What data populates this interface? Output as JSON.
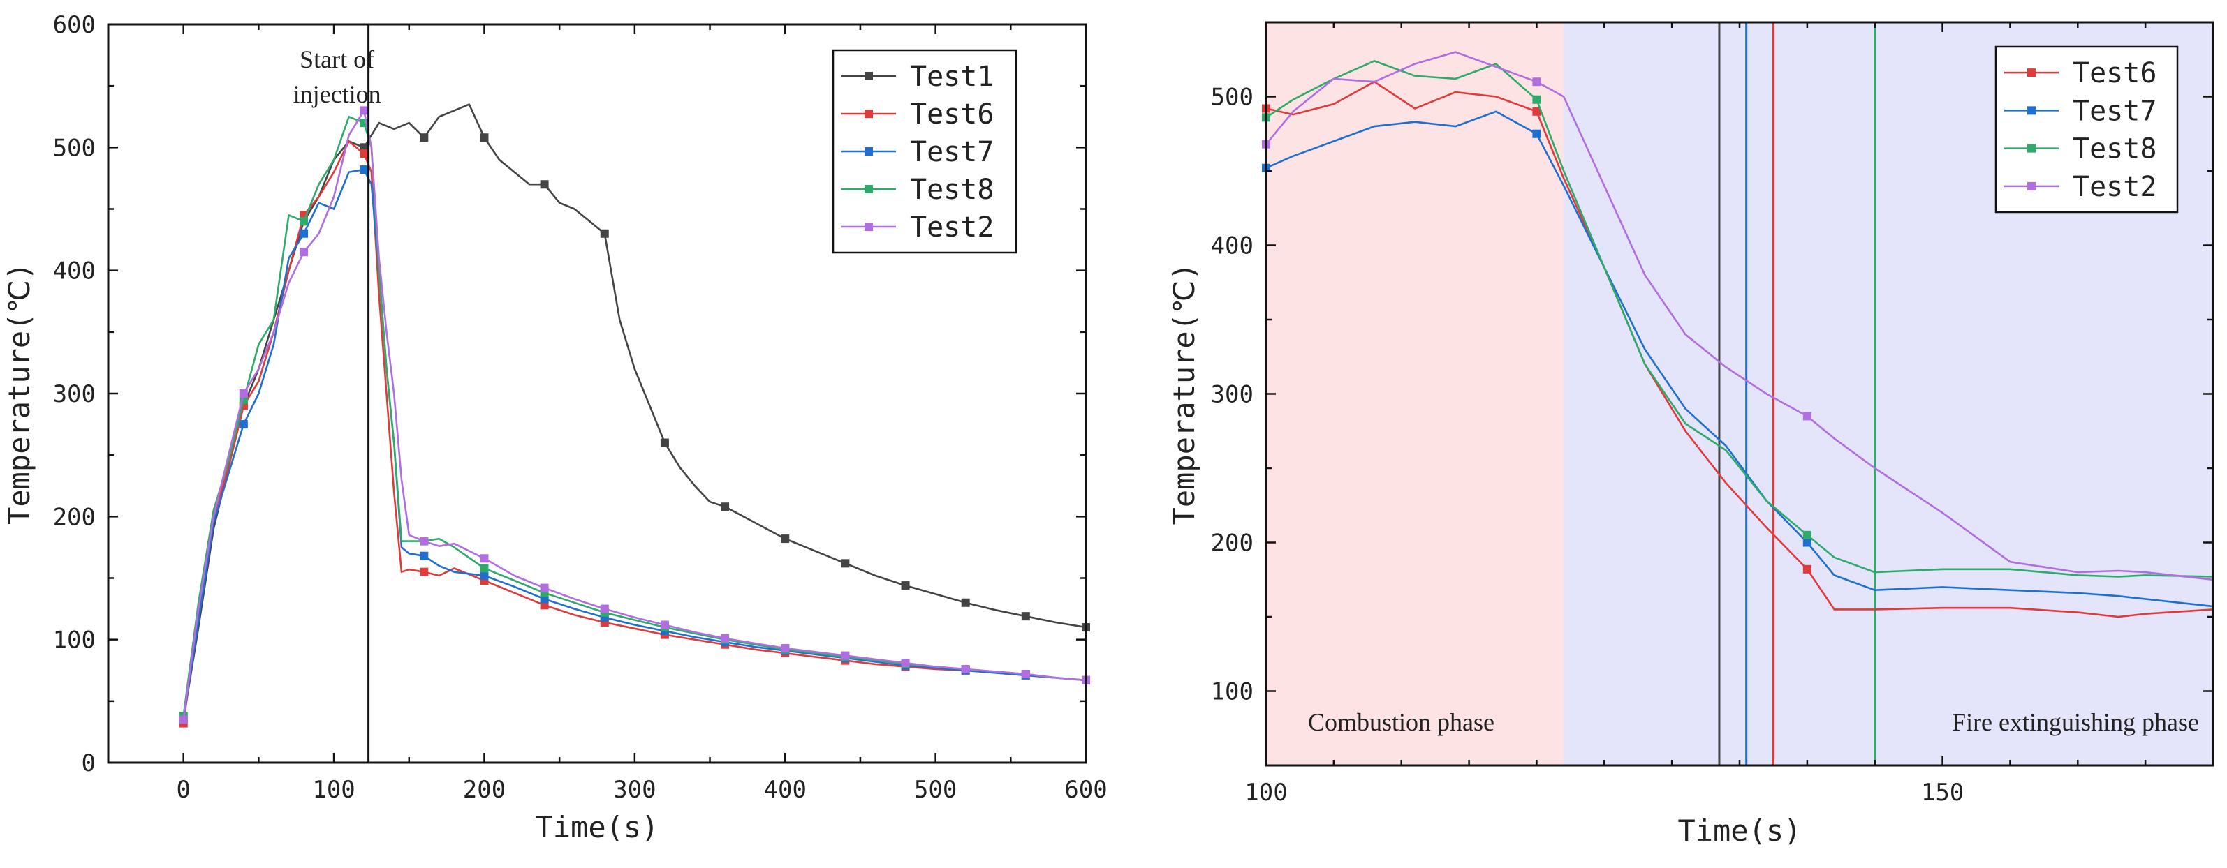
{
  "chart_data": [
    {
      "type": "line",
      "title": "",
      "xlabel": "Time(s)",
      "ylabel": "Temperature(℃)",
      "xlim": [
        -50,
        600
      ],
      "ylim": [
        0,
        600
      ],
      "xticks": [
        0,
        100,
        200,
        300,
        400,
        500,
        600
      ],
      "yticks": [
        0,
        100,
        200,
        300,
        400,
        500,
        600
      ],
      "legend_position": "top-right",
      "annotation": {
        "text_line1": "Start of",
        "text_line2": "injection",
        "x": 123
      },
      "series": [
        {
          "name": "Test1",
          "color": "#444444",
          "x": [
            0,
            10,
            20,
            30,
            40,
            50,
            60,
            70,
            80,
            90,
            100,
            110,
            120,
            130,
            140,
            150,
            160,
            170,
            180,
            190,
            200,
            210,
            220,
            230,
            240,
            250,
            260,
            270,
            280,
            290,
            300,
            310,
            320,
            330,
            340,
            350,
            360,
            380,
            400,
            420,
            440,
            460,
            480,
            500,
            520,
            540,
            560,
            580,
            600
          ],
          "y": [
            35,
            110,
            190,
            240,
            290,
            320,
            360,
            400,
            440,
            460,
            490,
            505,
            500,
            520,
            515,
            520,
            508,
            525,
            530,
            535,
            508,
            490,
            480,
            470,
            470,
            455,
            450,
            440,
            430,
            360,
            320,
            290,
            260,
            240,
            225,
            212,
            208,
            195,
            182,
            172,
            162,
            152,
            144,
            137,
            130,
            124,
            119,
            114,
            110
          ],
          "marker_x": [
            0,
            40,
            80,
            120,
            160,
            200,
            240,
            280,
            320,
            360,
            400,
            440,
            480,
            520,
            560,
            600
          ]
        },
        {
          "name": "Test6",
          "color": "#e03b3b",
          "x": [
            0,
            10,
            20,
            30,
            40,
            50,
            60,
            70,
            80,
            90,
            100,
            110,
            120,
            125,
            130,
            135,
            140,
            145,
            150,
            160,
            170,
            180,
            200,
            220,
            240,
            260,
            280,
            300,
            320,
            340,
            360,
            380,
            400,
            420,
            440,
            460,
            480,
            500,
            520,
            540,
            560,
            580,
            600
          ],
          "y": [
            32,
            120,
            200,
            240,
            290,
            310,
            350,
            400,
            445,
            460,
            480,
            505,
            495,
            480,
            380,
            300,
            220,
            155,
            157,
            155,
            152,
            158,
            148,
            138,
            128,
            120,
            114,
            109,
            104,
            100,
            96,
            92,
            89,
            86,
            83,
            80,
            78,
            76,
            75,
            73,
            71,
            69,
            67
          ],
          "marker_x": [
            0,
            40,
            80,
            120,
            160,
            200,
            240,
            280,
            320,
            360,
            400,
            440,
            480,
            520,
            560,
            600
          ]
        },
        {
          "name": "Test7",
          "color": "#1f6fd1",
          "x": [
            0,
            10,
            20,
            30,
            40,
            50,
            60,
            70,
            80,
            90,
            100,
            110,
            120,
            125,
            130,
            135,
            140,
            145,
            150,
            160,
            170,
            180,
            200,
            220,
            240,
            260,
            280,
            300,
            320,
            340,
            360,
            380,
            400,
            420,
            440,
            460,
            480,
            500,
            520,
            540,
            560,
            580,
            600
          ],
          "y": [
            35,
            115,
            195,
            235,
            275,
            300,
            340,
            410,
            430,
            455,
            450,
            480,
            482,
            470,
            400,
            320,
            260,
            175,
            170,
            168,
            160,
            155,
            152,
            143,
            133,
            125,
            118,
            112,
            107,
            102,
            98,
            94,
            91,
            88,
            85,
            82,
            79,
            77,
            75,
            73,
            71,
            69,
            67
          ],
          "marker_x": [
            0,
            40,
            80,
            120,
            160,
            200,
            240,
            280,
            320,
            360,
            400,
            440,
            480,
            520,
            560,
            600
          ]
        },
        {
          "name": "Test8",
          "color": "#2eaa6a",
          "x": [
            0,
            10,
            20,
            30,
            40,
            50,
            60,
            70,
            80,
            90,
            100,
            110,
            120,
            125,
            130,
            135,
            140,
            145,
            150,
            160,
            170,
            180,
            200,
            220,
            240,
            260,
            280,
            300,
            320,
            340,
            360,
            380,
            400,
            420,
            440,
            460,
            480,
            500,
            520,
            540,
            560,
            580,
            600
          ],
          "y": [
            38,
            130,
            205,
            245,
            295,
            340,
            360,
            445,
            440,
            470,
            490,
            525,
            520,
            500,
            400,
            320,
            260,
            180,
            180,
            180,
            182,
            175,
            158,
            148,
            138,
            130,
            122,
            116,
            110,
            105,
            100,
            96,
            92,
            89,
            86,
            83,
            80,
            78,
            76,
            74,
            72,
            69,
            67
          ],
          "marker_x": [
            0,
            40,
            80,
            120,
            160,
            200,
            240,
            280,
            320,
            360,
            400,
            440,
            480,
            520,
            560,
            600
          ]
        },
        {
          "name": "Test2",
          "color": "#b06ee0",
          "x": [
            0,
            10,
            20,
            30,
            40,
            50,
            60,
            70,
            80,
            90,
            100,
            110,
            120,
            125,
            130,
            135,
            140,
            145,
            150,
            160,
            170,
            180,
            200,
            220,
            240,
            260,
            280,
            300,
            320,
            340,
            360,
            380,
            400,
            420,
            440,
            460,
            480,
            500,
            520,
            540,
            560,
            580,
            600
          ],
          "y": [
            35,
            125,
            200,
            250,
            300,
            320,
            350,
            390,
            415,
            430,
            460,
            510,
            530,
            500,
            410,
            350,
            300,
            230,
            185,
            180,
            176,
            178,
            166,
            152,
            142,
            133,
            125,
            118,
            112,
            106,
            101,
            97,
            93,
            90,
            87,
            84,
            81,
            78,
            76,
            74,
            72,
            69,
            67
          ],
          "marker_x": [
            0,
            40,
            80,
            120,
            160,
            200,
            240,
            280,
            320,
            360,
            400,
            440,
            480,
            520,
            560,
            600
          ]
        }
      ]
    },
    {
      "type": "line",
      "title": "",
      "xlabel": "Time(s)",
      "ylabel": "Temperature(℃)",
      "xlim": [
        100,
        170
      ],
      "ylim": [
        50,
        550
      ],
      "xticks": [
        100,
        150
      ],
      "yticks": [
        100,
        200,
        300,
        400,
        500
      ],
      "legend_position": "top-right",
      "phases": [
        {
          "label": "Combustion phase",
          "from": 100,
          "to": 122,
          "color": "#fde3e3"
        },
        {
          "label": "Fire extinguishing phase",
          "from": 122,
          "to": 170,
          "color": "#e4e4fb"
        }
      ],
      "vlines": [
        {
          "x": 133.5,
          "color": "#444444"
        },
        {
          "x": 135.5,
          "color": "#1f6fd1"
        },
        {
          "x": 137.5,
          "color": "#e03b3b"
        },
        {
          "x": 145,
          "color": "#2eaa6a"
        }
      ],
      "series": [
        {
          "name": "Test6",
          "color": "#e03b3b",
          "x": [
            100,
            102,
            105,
            108,
            111,
            114,
            117,
            120,
            122,
            125,
            128,
            131,
            134,
            137,
            140,
            142,
            145,
            150,
            155,
            160,
            163,
            165,
            170
          ],
          "y": [
            492,
            488,
            495,
            510,
            492,
            503,
            500,
            490,
            445,
            385,
            320,
            275,
            240,
            210,
            182,
            155,
            155,
            156,
            156,
            153,
            150,
            152,
            155
          ],
          "marker_x": [
            100,
            120,
            140
          ]
        },
        {
          "name": "Test7",
          "color": "#1f6fd1",
          "x": [
            100,
            102,
            105,
            108,
            111,
            114,
            117,
            120,
            122,
            125,
            128,
            131,
            134,
            137,
            140,
            142,
            145,
            150,
            155,
            160,
            163,
            165,
            170
          ],
          "y": [
            452,
            460,
            470,
            480,
            483,
            480,
            490,
            475,
            440,
            385,
            330,
            290,
            265,
            228,
            200,
            178,
            168,
            170,
            168,
            166,
            164,
            162,
            157
          ],
          "marker_x": [
            100,
            120,
            140
          ]
        },
        {
          "name": "Test8",
          "color": "#2eaa6a",
          "x": [
            100,
            102,
            105,
            108,
            111,
            114,
            117,
            120,
            122,
            125,
            128,
            131,
            134,
            137,
            140,
            142,
            145,
            150,
            155,
            160,
            163,
            165,
            170
          ],
          "y": [
            486,
            498,
            512,
            524,
            514,
            512,
            522,
            498,
            450,
            385,
            320,
            280,
            262,
            228,
            205,
            190,
            180,
            182,
            182,
            178,
            177,
            178,
            177
          ],
          "marker_x": [
            100,
            120,
            140
          ]
        },
        {
          "name": "Test2",
          "color": "#b06ee0",
          "x": [
            100,
            102,
            105,
            108,
            111,
            114,
            117,
            120,
            122,
            125,
            128,
            131,
            134,
            137,
            140,
            142,
            145,
            150,
            155,
            160,
            163,
            165,
            170
          ],
          "y": [
            468,
            490,
            512,
            510,
            522,
            530,
            520,
            510,
            500,
            440,
            380,
            340,
            318,
            300,
            285,
            270,
            250,
            220,
            187,
            180,
            181,
            180,
            175
          ],
          "marker_x": [
            100,
            120,
            140
          ]
        }
      ]
    }
  ]
}
